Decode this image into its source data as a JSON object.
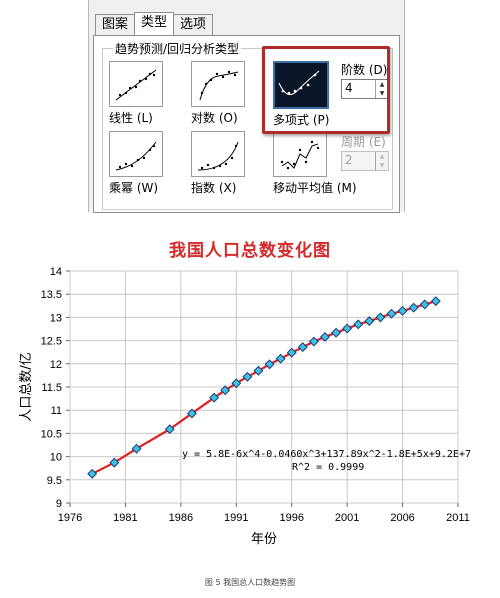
{
  "dialog": {
    "tabs": [
      {
        "label": "图案",
        "active": false
      },
      {
        "label": "类型",
        "active": true
      },
      {
        "label": "选项",
        "active": false
      }
    ],
    "group_title": "趋势预测/回归分析类型",
    "options": [
      {
        "label": "线性 (L)",
        "icon": "linear-trend-icon"
      },
      {
        "label": "对数 (O)",
        "icon": "log-trend-icon"
      },
      {
        "label": "多项式 (P)",
        "icon": "polynomial-trend-icon",
        "selected": true
      },
      {
        "label": "乘幂 (W)",
        "icon": "power-trend-icon"
      },
      {
        "label": "指数 (X)",
        "icon": "exponential-trend-icon"
      },
      {
        "label": "移动平均值 (M)",
        "icon": "moving-average-icon"
      }
    ],
    "order_label": "阶数 (D)",
    "order_value": "4",
    "period_label": "周期 (E)",
    "period_value": "2",
    "highlight_color": "#b02a2a"
  },
  "chart_data": {
    "type": "line",
    "title": "我国人口总数变化图",
    "xlabel": "年份",
    "ylabel": "人口总数/亿",
    "xlim": [
      1976,
      2011
    ],
    "ylim": [
      9,
      14
    ],
    "xticks": [
      "1976",
      "1981",
      "1986",
      "1991",
      "1996",
      "2001",
      "2006",
      "2011"
    ],
    "yticks": [
      "9",
      "9.5",
      "10",
      "10.5",
      "11",
      "11.5",
      "12",
      "12.5",
      "13",
      "13.5",
      "14"
    ],
    "grid": true,
    "series": [
      {
        "x": [
          1978,
          1980,
          1982,
          1985,
          1987,
          1989,
          1990,
          1991,
          1992,
          1993,
          1994,
          1995,
          1996,
          1997,
          1998,
          1999,
          2000,
          2001,
          2002,
          2003,
          2004,
          2005,
          2006,
          2007,
          2008,
          2009
        ],
        "y": [
          9.63,
          9.87,
          10.17,
          10.59,
          10.93,
          11.27,
          11.43,
          11.58,
          11.72,
          11.85,
          11.99,
          12.11,
          12.24,
          12.36,
          12.48,
          12.58,
          12.67,
          12.76,
          12.85,
          12.92,
          13.0,
          13.08,
          13.14,
          13.21,
          13.28,
          13.35
        ]
      }
    ],
    "trendline_equation": "y = 5.8E-6x^4-0.0460x^3+137.89x^2-1.8E+5x+9.2E+7",
    "r_squared": "R^2 = 0.9999",
    "colors": {
      "marker": "#40c0e0",
      "marker_edge": "#1a3a7a",
      "trend": "#e02020",
      "grid": "#c8c8c8"
    }
  },
  "caption": "图 5  我国总人口数趋势图"
}
